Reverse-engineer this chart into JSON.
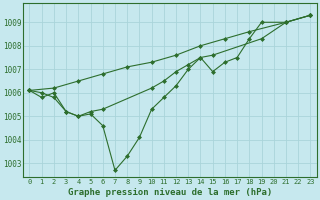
{
  "title": "Graphe pression niveau de la mer (hPa)",
  "background_color": "#c6e8ee",
  "grid_color": "#aad4da",
  "line_color": "#2d6e2d",
  "marker_color": "#2d6e2d",
  "xlim": [
    -0.5,
    23.5
  ],
  "ylim": [
    1002.4,
    1009.8
  ],
  "yticks": [
    1003,
    1004,
    1005,
    1006,
    1007,
    1008,
    1009
  ],
  "xticks": [
    0,
    1,
    2,
    3,
    4,
    5,
    6,
    7,
    8,
    9,
    10,
    11,
    12,
    13,
    14,
    15,
    16,
    17,
    18,
    19,
    20,
    21,
    22,
    23
  ],
  "series": [
    [
      1006.1,
      1006.0,
      1005.8,
      1005.2,
      1005.0,
      1005.1,
      1004.6,
      1002.7,
      1003.3,
      1004.1,
      1005.3,
      1005.8,
      1006.3,
      1007.0,
      1007.5,
      1006.9,
      1007.3,
      1007.5,
      1008.3,
      1009.0,
      1009.0,
      1009.3
    ],
    [
      1006.1,
      1005.8,
      1006.0,
      1005.2,
      1005.0,
      1005.2,
      1005.3,
      1006.2,
      1006.5,
      1006.9,
      1007.2,
      1007.5,
      1007.6,
      1008.3,
      1009.0,
      1009.3
    ],
    [
      1006.1,
      1006.2,
      1006.5,
      1006.8,
      1007.1,
      1007.3,
      1007.6,
      1008.0,
      1008.3,
      1008.6,
      1009.0,
      1009.3
    ]
  ],
  "series_x": [
    [
      0,
      1,
      2,
      3,
      4,
      5,
      6,
      7,
      8,
      9,
      10,
      11,
      12,
      13,
      14,
      15,
      16,
      17,
      18,
      19,
      21,
      23
    ],
    [
      0,
      1,
      2,
      3,
      4,
      5,
      6,
      10,
      11,
      12,
      13,
      14,
      15,
      19,
      21,
      23
    ],
    [
      0,
      2,
      4,
      6,
      8,
      10,
      12,
      14,
      16,
      18,
      21,
      23
    ]
  ],
  "ytick_fontsize": 5.5,
  "xtick_fontsize": 5.0,
  "xlabel_fontsize": 6.5,
  "linewidth": 0.8,
  "markersize": 2.0
}
